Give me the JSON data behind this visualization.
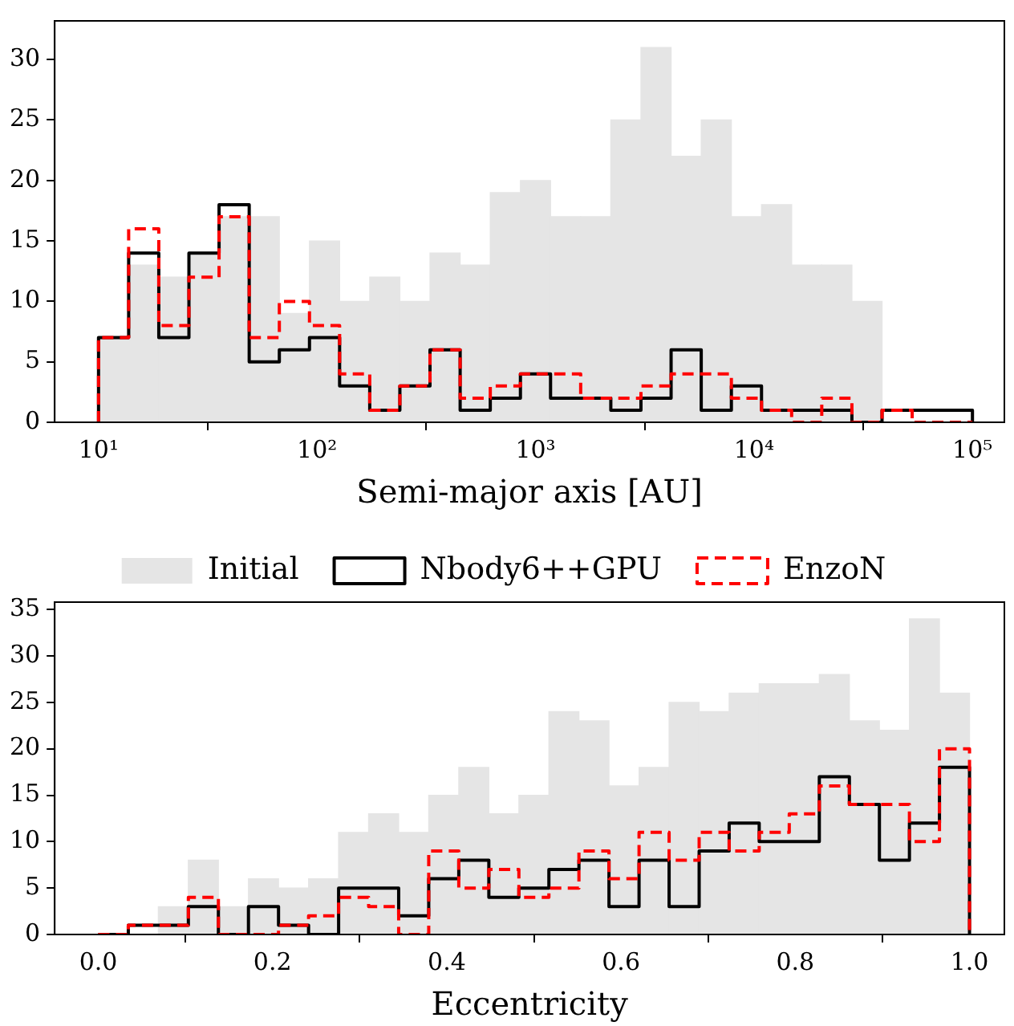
{
  "chart_data": [
    {
      "type": "histogram",
      "xlabel": "Semi-major axis [AU]",
      "log": "x",
      "xlim": [
        6.3,
        140000
      ],
      "ylim": [
        0,
        33.2
      ],
      "xticks": [
        {
          "value": 10,
          "label": "10¹"
        },
        {
          "value": 100,
          "label": "10²"
        },
        {
          "value": 1000,
          "label": "10³"
        },
        {
          "value": 10000,
          "label": "10⁴"
        },
        {
          "value": 100000,
          "label": "10⁵"
        }
      ],
      "yticks": [
        0,
        5,
        10,
        15,
        20,
        25,
        30
      ],
      "bins": [
        10,
        13.74,
        18.87,
        25.93,
        35.62,
        48.94,
        67.23,
        92.37,
        126.9,
        174.3,
        239.5,
        329,
        452,
        621,
        853.2,
        1172,
        1610,
        2212,
        3039,
        4175,
        5736,
        7880,
        10830,
        14870,
        20430,
        28070,
        38570,
        52980,
        72790,
        100000
      ],
      "series": [
        {
          "color": "#e5e5e5",
          "values": [
            7,
            13,
            12,
            14,
            17,
            17,
            9,
            15,
            10,
            12,
            10,
            14,
            13,
            19,
            20,
            17,
            17,
            25,
            31,
            22,
            25,
            17,
            18,
            13,
            13,
            10,
            0,
            0,
            0
          ]
        },
        {
          "color": "#000000",
          "line_style": "solid",
          "values": [
            7,
            14,
            7,
            14,
            18,
            5,
            6,
            7,
            3,
            1,
            3,
            6,
            1,
            2,
            4,
            2,
            2,
            1,
            2,
            6,
            1,
            3,
            1,
            1,
            1,
            0,
            1,
            1,
            1
          ]
        },
        {
          "color": "#ff0000",
          "line_style": "dashed",
          "values": [
            7,
            16,
            8,
            12,
            17,
            7,
            10,
            8,
            4,
            1,
            3,
            6,
            2,
            3,
            4,
            4,
            2,
            2,
            3,
            4,
            4,
            2,
            1,
            0,
            2,
            0,
            1,
            0,
            0
          ]
        }
      ]
    },
    {
      "type": "histogram",
      "xlabel": "Eccentricity",
      "xlim": [
        -0.05,
        1.04
      ],
      "ylim": [
        0,
        35.8
      ],
      "legend": "top",
      "xticks": [
        {
          "value": 0,
          "label": "0.0"
        },
        0.2,
        0.4,
        0.6,
        0.8,
        {
          "value": 1,
          "label": "1.0"
        }
      ],
      "yticks": [
        0,
        5,
        10,
        15,
        20,
        25,
        30,
        35
      ],
      "bins": [
        0,
        0.0345,
        0.069,
        0.1034,
        0.1379,
        0.1724,
        0.2069,
        0.2414,
        0.2759,
        0.3103,
        0.3448,
        0.3793,
        0.4138,
        0.4483,
        0.4828,
        0.5172,
        0.5517,
        0.5862,
        0.6207,
        0.6552,
        0.6897,
        0.7241,
        0.7586,
        0.7931,
        0.8276,
        0.8621,
        0.8966,
        0.931,
        0.9655,
        1
      ],
      "series": [
        {
          "name": "Initial",
          "color": "#e5e5e5",
          "values": [
            0,
            0,
            3,
            8,
            3,
            6,
            5,
            6,
            11,
            13,
            11,
            15,
            18,
            13,
            15,
            24,
            23,
            16,
            18,
            25,
            24,
            26,
            27,
            27,
            28,
            23,
            22,
            34,
            26
          ]
        },
        {
          "name": "Nbody6++GPU",
          "color": "#000000",
          "line_style": "solid",
          "values": [
            0,
            1,
            1,
            3,
            0,
            3,
            1,
            0,
            5,
            5,
            2,
            6,
            8,
            4,
            5,
            7,
            8,
            3,
            8,
            3,
            9,
            12,
            10,
            10,
            17,
            14,
            8,
            12,
            18
          ]
        },
        {
          "name": "EnzoN",
          "color": "#ff0000",
          "line_style": "dashed",
          "values": [
            0,
            1,
            1,
            4,
            0,
            0,
            1,
            2,
            4,
            3,
            0,
            9,
            5,
            7,
            4,
            5,
            9,
            6,
            11,
            8,
            11,
            9,
            11,
            13,
            16,
            14,
            14,
            10,
            20
          ]
        }
      ]
    }
  ]
}
